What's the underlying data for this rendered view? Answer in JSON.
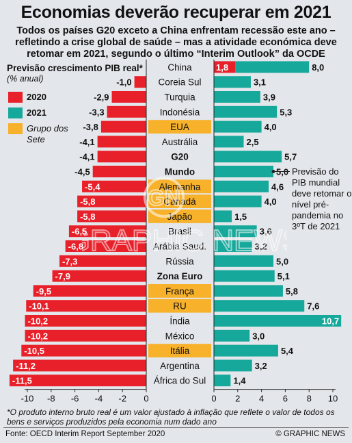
{
  "header": {
    "title": "Economias deverão recuperar em 2021",
    "subtitle": "Todos os países G20 exceto a China enfrentam recessão este ano – refletindo a crise global de saúde – mas a atividade económica deve retomar em 2021, segundo o último “Interim Outlook” da OCDE"
  },
  "legend": {
    "title": "Previsão crescimento PIB real*",
    "units": "(% anual)",
    "items": [
      {
        "label": "2020",
        "color": "#e8202a"
      },
      {
        "label": "2021",
        "color": "#16a89a"
      },
      {
        "label": "Grupo dos Sete",
        "color": "#f7b12a"
      }
    ]
  },
  "annotation": "Previsão do PIB mundial deve retomar o nível pré-pandemia no 3ºT de 2021",
  "footnote": "*O produto interno bruto real é um valor ajustado à inflação que reflete o valor de todos os bens e serviços produzidos pela economia num dado ano",
  "source": "Fonte: OECD Interim Report September 2020",
  "credit": "© GRAPHIC NEWS",
  "watermark": "GRAPHIC NEWS",
  "chart_data": {
    "type": "bar",
    "layout": "butterfly",
    "colors": {
      "y2020": "#e8202a",
      "y2021": "#16a89a",
      "g7": "#f7b12a"
    },
    "categories": [
      "China",
      "Coreia Sul",
      "Turquia",
      "Indonésia",
      "EUA",
      "Austrália",
      "G20",
      "Mundo",
      "Alemanha",
      "Canadá",
      "Japão",
      "Brasil",
      "Arábia Saud.",
      "Rússia",
      "Zona Euro",
      "França",
      "RU",
      "Índia",
      "México",
      "Itália",
      "Argentina",
      "África do Sul"
    ],
    "g7": [
      false,
      false,
      false,
      false,
      true,
      false,
      false,
      false,
      true,
      true,
      true,
      false,
      false,
      false,
      false,
      true,
      true,
      false,
      false,
      true,
      false,
      false
    ],
    "bold": [
      false,
      false,
      false,
      false,
      false,
      false,
      true,
      true,
      false,
      false,
      false,
      false,
      false,
      false,
      true,
      false,
      false,
      false,
      false,
      false,
      false,
      false
    ],
    "series": [
      {
        "name": "2020",
        "values": [
          1.8,
          -1.0,
          -2.9,
          -3.3,
          -3.8,
          -4.1,
          -4.1,
          -4.5,
          -5.4,
          -5.8,
          -5.8,
          -6.5,
          -6.8,
          -7.3,
          -7.9,
          -9.5,
          -10.1,
          -10.2,
          -10.2,
          -10.5,
          -11.2,
          -11.5
        ]
      },
      {
        "name": "2021",
        "values": [
          8.0,
          3.1,
          3.9,
          5.3,
          4.0,
          2.5,
          5.7,
          5.0,
          4.6,
          4.0,
          1.5,
          3.6,
          3.2,
          5.0,
          5.1,
          5.8,
          7.6,
          10.7,
          3.0,
          5.4,
          3.2,
          1.4
        ]
      }
    ],
    "labels_2020": [
      "1,8",
      "-1,0",
      "-2,9",
      "-3,3",
      "-3,8",
      "-4,1",
      "-4,1",
      "-4,5",
      "-5,4",
      "-5,8",
      "-5,8",
      "-6,5",
      "-6,8",
      "-7,3",
      "-7,9",
      "-9,5",
      "-10,1",
      "-10,2",
      "-10,2",
      "-10,5",
      "-11,2",
      "-11,5"
    ],
    "labels_2021": [
      "8,0",
      "3,1",
      "3,9",
      "5,3",
      "4,0",
      "2,5",
      "5,7",
      "5,0",
      "4,6",
      "4,0",
      "1,5",
      "3,6",
      "3,2",
      "5,0",
      "5,1",
      "5,8",
      "7,6",
      "10,7",
      "3,0",
      "5,4",
      "3,2",
      "1,4"
    ],
    "xlim_2020": [
      -10,
      0
    ],
    "xticks_2020": [
      "-10",
      "-8",
      "-6",
      "-4",
      "-2",
      "0"
    ],
    "xlim_2021": [
      0,
      10
    ],
    "xticks_2021": [
      "0",
      "2",
      "4",
      "6",
      "8",
      "10"
    ]
  }
}
